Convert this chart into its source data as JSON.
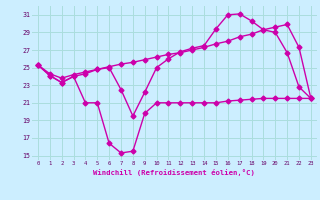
{
  "xlabel": "Windchill (Refroidissement éolien,°C)",
  "bg_color": "#cceeff",
  "grid_color": "#aadddd",
  "line_color": "#cc00aa",
  "ylim": [
    14.5,
    32.0
  ],
  "xlim": [
    -0.5,
    23.5
  ],
  "yticks": [
    15,
    17,
    19,
    21,
    23,
    25,
    27,
    29,
    31
  ],
  "xticks": [
    0,
    1,
    2,
    3,
    4,
    5,
    6,
    7,
    8,
    9,
    10,
    11,
    12,
    13,
    14,
    15,
    16,
    17,
    18,
    19,
    20,
    21,
    22,
    23
  ],
  "series1_x": [
    0,
    1,
    2,
    3,
    4,
    5,
    6,
    7,
    8,
    9,
    10,
    11,
    12,
    13,
    14,
    15,
    16,
    17,
    18,
    19,
    20,
    21,
    22,
    23
  ],
  "series1_y": [
    25.3,
    24.1,
    23.3,
    24.0,
    21.0,
    21.0,
    16.4,
    15.3,
    15.5,
    19.8,
    21.0,
    21.0,
    21.0,
    21.0,
    21.0,
    21.0,
    21.2,
    21.3,
    21.4,
    21.5,
    21.5,
    21.5,
    21.5,
    21.5
  ],
  "series2_x": [
    0,
    1,
    2,
    3,
    4,
    5,
    6,
    7,
    8,
    9,
    10,
    11,
    12,
    13,
    14,
    15,
    16,
    17,
    18,
    19,
    20,
    21,
    22,
    23
  ],
  "series2_y": [
    25.3,
    24.1,
    23.3,
    24.0,
    24.3,
    24.8,
    25.0,
    22.5,
    19.5,
    22.2,
    25.0,
    26.0,
    26.8,
    27.2,
    27.5,
    29.4,
    31.0,
    31.1,
    30.3,
    29.3,
    29.0,
    26.7,
    22.8,
    21.5
  ],
  "series3_x": [
    0,
    1,
    2,
    3,
    4,
    5,
    6,
    7,
    8,
    9,
    10,
    11,
    12,
    13,
    14,
    15,
    16,
    17,
    18,
    19,
    20,
    21,
    22,
    23
  ],
  "series3_y": [
    25.3,
    24.3,
    23.8,
    24.2,
    24.5,
    24.8,
    25.1,
    25.4,
    25.6,
    25.9,
    26.2,
    26.5,
    26.7,
    27.0,
    27.3,
    27.7,
    28.0,
    28.5,
    28.8,
    29.3,
    29.6,
    29.9,
    27.3,
    21.5
  ],
  "marker": "D",
  "markersize": 2.5,
  "linewidth": 1.0
}
